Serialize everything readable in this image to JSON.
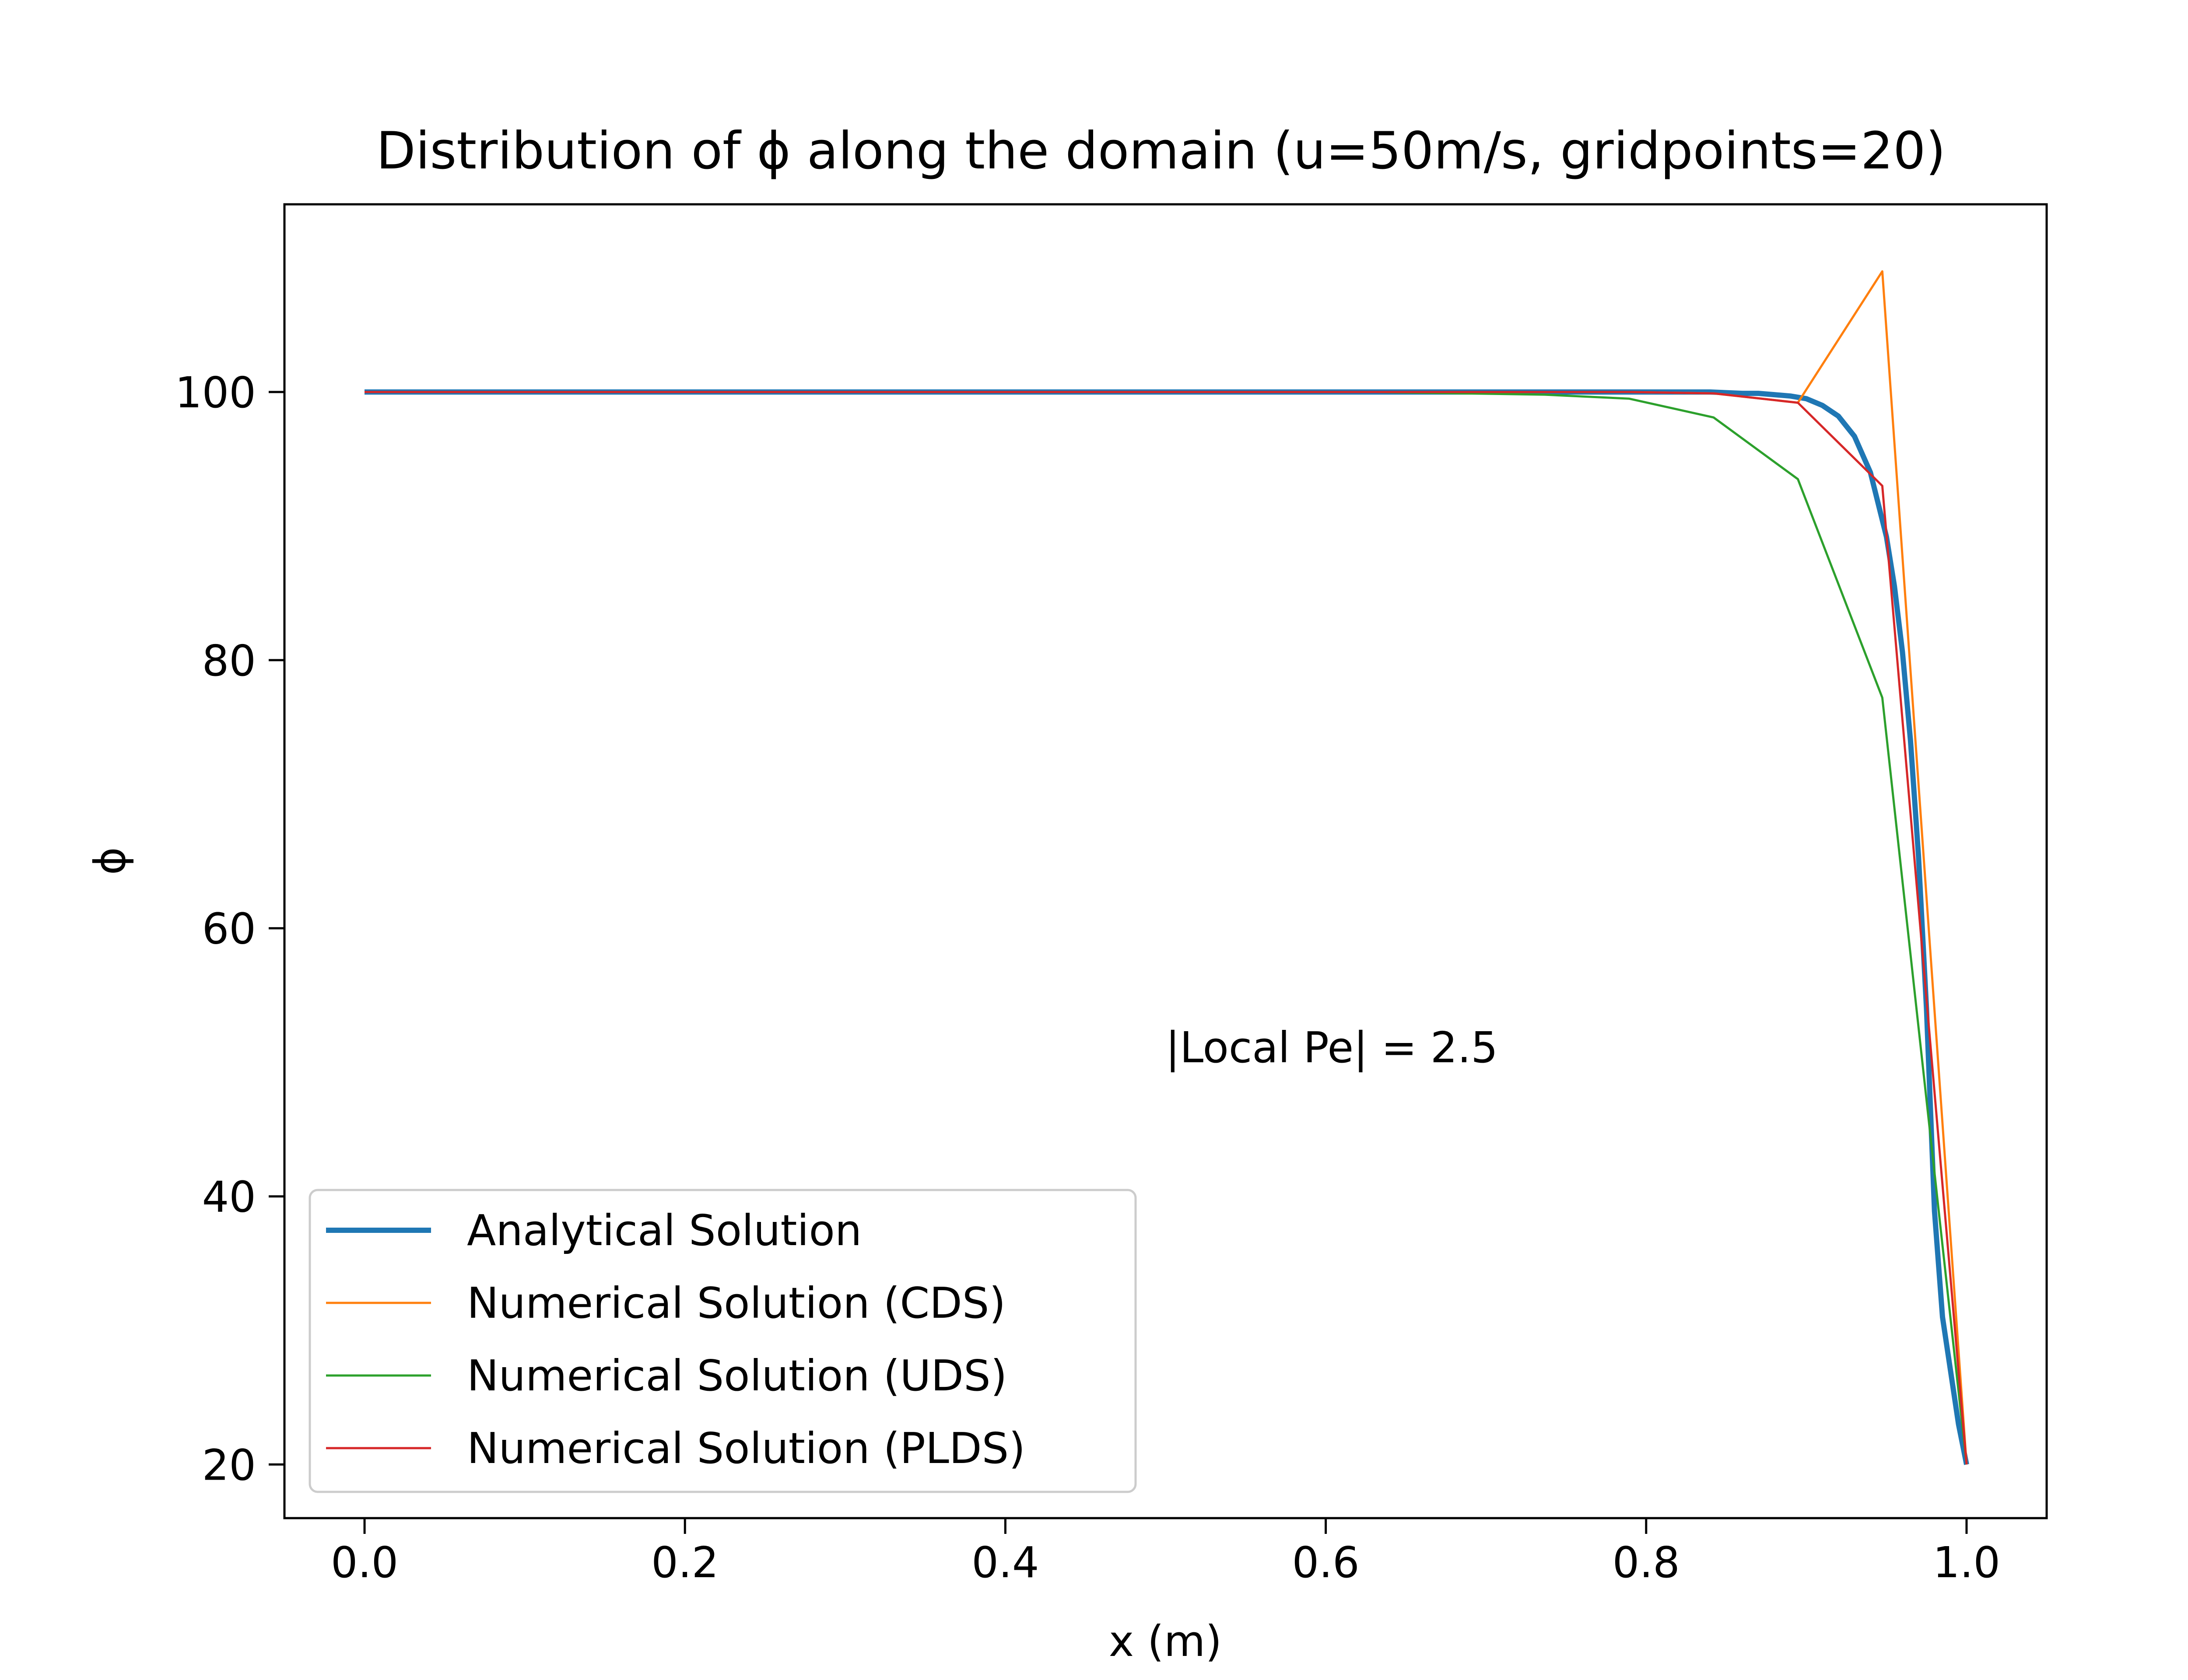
{
  "chart_data": {
    "type": "line",
    "title": "Distribution of ϕ along the domain (u=50m/s, gridpoints=20)",
    "xlabel": "x (m)",
    "ylabel": "ϕ",
    "xlim": [
      -0.05,
      1.05
    ],
    "ylim": [
      16,
      114
    ],
    "x_ticks": [
      0.0,
      0.2,
      0.4,
      0.6,
      0.8,
      1.0
    ],
    "x_tick_labels": [
      "0.0",
      "0.2",
      "0.4",
      "0.6",
      "0.8",
      "1.0"
    ],
    "y_ticks": [
      20,
      40,
      60,
      80,
      100
    ],
    "y_tick_labels": [
      "20",
      "40",
      "60",
      "80",
      "100"
    ],
    "grid": false,
    "legend_position": "lower-left",
    "annotation": {
      "text": "|Local Pe| = 2.5",
      "x": 0.5,
      "y": 50
    },
    "series": [
      {
        "name": "Analytical Solution",
        "color": "#1f77b4",
        "style": "thick",
        "x": [
          0.0,
          0.1,
          0.2,
          0.3,
          0.4,
          0.5,
          0.6,
          0.7,
          0.75,
          0.8,
          0.82,
          0.84,
          0.86,
          0.87,
          0.88,
          0.89,
          0.9,
          0.91,
          0.92,
          0.93,
          0.94,
          0.95,
          0.955,
          0.96,
          0.965,
          0.97,
          0.975,
          0.98,
          0.985,
          0.99,
          0.995,
          1.0
        ],
        "y": [
          100,
          100,
          100,
          100,
          100,
          100,
          100,
          100,
          100,
          100,
          100,
          100,
          99.9,
          99.9,
          99.8,
          99.7,
          99.5,
          99.0,
          98.2,
          96.7,
          94.0,
          89.2,
          85.5,
          80.6,
          74.0,
          65.4,
          54.0,
          38.9,
          31.0,
          27.0,
          23.0,
          20.0
        ]
      },
      {
        "name": "Numerical Solution (CDS)",
        "color": "#ff7f0e",
        "style": "thin",
        "x": [
          0.0,
          0.0526,
          0.1053,
          0.1579,
          0.2105,
          0.2632,
          0.3158,
          0.3684,
          0.4211,
          0.4737,
          0.5263,
          0.5789,
          0.6316,
          0.6842,
          0.7368,
          0.7895,
          0.8421,
          0.8947,
          0.9474,
          1.0
        ],
        "y": [
          100,
          100,
          100,
          100,
          100,
          100,
          100,
          100,
          100,
          100,
          100,
          100,
          100,
          100,
          100,
          100,
          99.9,
          99.2,
          109.0,
          20.0
        ]
      },
      {
        "name": "Numerical Solution (UDS)",
        "color": "#2ca02c",
        "style": "thin",
        "x": [
          0.0,
          0.0526,
          0.1053,
          0.1579,
          0.2105,
          0.2632,
          0.3158,
          0.3684,
          0.4211,
          0.4737,
          0.5263,
          0.5789,
          0.6316,
          0.6842,
          0.7368,
          0.7895,
          0.8421,
          0.8947,
          0.9474,
          1.0
        ],
        "y": [
          100,
          100,
          100,
          100,
          100,
          100,
          100,
          100,
          100,
          100,
          100,
          100,
          100,
          99.9,
          99.8,
          99.5,
          98.1,
          93.5,
          77.2,
          20.0
        ]
      },
      {
        "name": "Numerical Solution (PLDS)",
        "color": "#d62728",
        "style": "thin",
        "x": [
          0.0,
          0.0526,
          0.1053,
          0.1579,
          0.2105,
          0.2632,
          0.3158,
          0.3684,
          0.4211,
          0.4737,
          0.5263,
          0.5789,
          0.6316,
          0.6842,
          0.7368,
          0.7895,
          0.8421,
          0.8947,
          0.9474,
          1.0
        ],
        "y": [
          100,
          100,
          100,
          100,
          100,
          100,
          100,
          100,
          100,
          100,
          100,
          100,
          100,
          100,
          100,
          100,
          99.9,
          99.2,
          93.0,
          20.0
        ]
      }
    ]
  }
}
